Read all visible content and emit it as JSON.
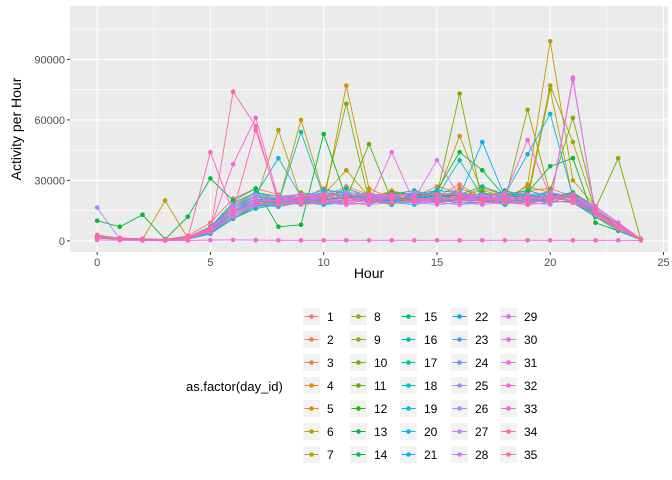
{
  "chart_data": {
    "type": "line",
    "xlabel": "Hour",
    "ylabel": "Activity per Hour",
    "xlim": [
      -1.2,
      25.2
    ],
    "ylim": [
      -5500,
      116500
    ],
    "xticks": [
      "0",
      "5",
      "10",
      "15",
      "20",
      "25"
    ],
    "xtick_values": [
      0,
      5,
      10,
      15,
      20,
      25
    ],
    "yticks": [
      "0",
      "30000",
      "60000",
      "90000"
    ],
    "ytick_values": [
      0,
      30000,
      60000,
      90000
    ],
    "grid": true,
    "legend": {
      "title": "as.factor(day_id)",
      "placement": "bottom",
      "columns": 5,
      "rows": 7
    },
    "x": [
      0,
      1,
      2,
      3,
      4,
      5,
      6,
      7,
      8,
      9,
      10,
      11,
      12,
      13,
      14,
      15,
      16,
      17,
      18,
      19,
      20,
      21,
      22,
      23,
      24
    ],
    "series": [
      {
        "name": "1",
        "color": "#F8766D",
        "values": [
          2500,
          1500,
          1000,
          800,
          2500,
          9000,
          21000,
          26000,
          23000,
          19000,
          22000,
          27000,
          23000,
          19000,
          24000,
          22000,
          28000,
          21000,
          24000,
          20000,
          24000,
          21000,
          14000,
          9000,
          1000
        ]
      },
      {
        "name": "2",
        "color": "#F47D4E",
        "values": [
          3000,
          1200,
          900,
          600,
          1800,
          7000,
          18000,
          24000,
          22000,
          21000,
          26000,
          23000,
          21000,
          25000,
          22000,
          27000,
          24000,
          19000,
          22000,
          25000,
          26000,
          22000,
          16000,
          8000,
          900
        ]
      },
      {
        "name": "3",
        "color": "#EC8239",
        "values": [
          1800,
          800,
          600,
          500,
          1500,
          5000,
          14000,
          20000,
          18000,
          22000,
          20000,
          19000,
          18000,
          22000,
          21000,
          24000,
          22000,
          26000,
          23000,
          21000,
          19000,
          23000,
          14000,
          6000,
          700
        ]
      },
      {
        "name": "4",
        "color": "#E08B00",
        "values": [
          2000,
          1000,
          700,
          400,
          1200,
          6000,
          15000,
          18000,
          20000,
          18000,
          21000,
          24000,
          20000,
          18000,
          23000,
          20000,
          26000,
          22000,
          20000,
          18000,
          22000,
          20000,
          15000,
          7000,
          800
        ]
      },
      {
        "name": "5",
        "color": "#D39200",
        "values": [
          1500,
          700,
          500,
          300,
          1000,
          4000,
          13000,
          19000,
          17000,
          20000,
          19000,
          77000,
          26000,
          21000,
          20000,
          22000,
          23000,
          20000,
          21000,
          27000,
          24000,
          19000,
          12000,
          6000,
          600
        ]
      },
      {
        "name": "6",
        "color": "#C49A00",
        "values": [
          2200,
          1100,
          800,
          20000,
          1400,
          5500,
          16000,
          21000,
          19000,
          60000,
          23000,
          35000,
          22000,
          24000,
          21000,
          23000,
          52000,
          24000,
          19000,
          28000,
          99000,
          30000,
          17000,
          9000,
          900
        ]
      },
      {
        "name": "7",
        "color": "#B4A000",
        "values": [
          1700,
          900,
          700,
          500,
          1300,
          5000,
          14000,
          20000,
          55000,
          21000,
          20000,
          22000,
          19000,
          23000,
          20000,
          21000,
          22000,
          25000,
          22000,
          20000,
          75000,
          21000,
          13000,
          7000,
          700
        ]
      },
      {
        "name": "8",
        "color": "#A3A500",
        "values": [
          2400,
          1300,
          900,
          600,
          1600,
          6000,
          17000,
          23000,
          21000,
          19000,
          24000,
          22000,
          24000,
          20000,
          22000,
          24000,
          21000,
          23000,
          24000,
          22000,
          77000,
          49000,
          15000,
          8000,
          800
        ]
      },
      {
        "name": "9",
        "color": "#8FAA00",
        "values": [
          1900,
          1000,
          600,
          400,
          1100,
          4500,
          12000,
          18000,
          20000,
          22000,
          21000,
          20000,
          22000,
          19000,
          24000,
          20000,
          20000,
          22000,
          20000,
          65000,
          23000,
          22000,
          14000,
          6000,
          600
        ]
      },
      {
        "name": "10",
        "color": "#78AF00",
        "values": [
          2100,
          1100,
          800,
          500,
          1500,
          5500,
          15000,
          21000,
          18000,
          24000,
          22000,
          68000,
          20000,
          22000,
          19000,
          23000,
          73000,
          19000,
          23000,
          21000,
          25000,
          61000,
          16000,
          41000,
          700
        ]
      },
      {
        "name": "11",
        "color": "#5BB300",
        "values": [
          1600,
          800,
          600,
          300,
          1000,
          4000,
          11000,
          17000,
          19000,
          20000,
          18000,
          21000,
          48000,
          20000,
          22000,
          21000,
          23000,
          21000,
          19000,
          23000,
          21000,
          20000,
          13000,
          7000,
          500
        ]
      },
      {
        "name": "12",
        "color": "#22B700",
        "values": [
          2300,
          1200,
          900,
          600,
          1700,
          6500,
          17000,
          22000,
          20000,
          21000,
          24000,
          23000,
          21000,
          24000,
          23000,
          22000,
          24000,
          20000,
          25000,
          22000,
          20000,
          24000,
          15000,
          8000,
          800
        ]
      },
      {
        "name": "13",
        "color": "#00BA38",
        "values": [
          10000,
          7000,
          13000,
          800,
          12000,
          31000,
          20000,
          26000,
          7000,
          8000,
          53000,
          21000,
          23000,
          19000,
          21000,
          25000,
          44000,
          35000,
          22000,
          24000,
          37000,
          41000,
          9000,
          5000,
          600
        ]
      },
      {
        "name": "14",
        "color": "#00BD5C",
        "values": [
          1800,
          900,
          700,
          400,
          1200,
          5000,
          13000,
          19000,
          21000,
          18000,
          20000,
          23000,
          19000,
          21000,
          20000,
          24000,
          20000,
          24000,
          21000,
          19000,
          23000,
          22000,
          14000,
          6000,
          700
        ]
      },
      {
        "name": "15",
        "color": "#00BF7D",
        "values": [
          2600,
          1400,
          1000,
          700,
          1900,
          7000,
          19000,
          24000,
          22000,
          23000,
          21000,
          26000,
          22000,
          23000,
          25000,
          22000,
          23000,
          27000,
          23000,
          25000,
          22000,
          24000,
          17000,
          9000,
          900
        ]
      },
      {
        "name": "16",
        "color": "#00C199",
        "values": [
          1500,
          800,
          500,
          300,
          900,
          3500,
          11000,
          16000,
          18000,
          21000,
          19000,
          20000,
          21000,
          18000,
          22000,
          19000,
          21000,
          20000,
          18000,
          21000,
          20000,
          19000,
          12000,
          5000,
          500
        ]
      },
      {
        "name": "17",
        "color": "#00C1B2",
        "values": [
          2000,
          1100,
          800,
          500,
          1400,
          5500,
          15000,
          20000,
          19000,
          54000,
          22000,
          21000,
          23000,
          20000,
          21000,
          22000,
          40000,
          22000,
          21000,
          23000,
          21000,
          23000,
          15000,
          7000,
          700
        ]
      },
      {
        "name": "18",
        "color": "#00C0C7",
        "values": [
          2200,
          1200,
          800,
          600,
          1600,
          6000,
          16000,
          22000,
          20000,
          22000,
          23000,
          22000,
          20000,
          22000,
          24000,
          21000,
          22000,
          21000,
          24000,
          22000,
          24000,
          21000,
          16000,
          8000,
          800
        ]
      },
      {
        "name": "19",
        "color": "#00BDDA",
        "values": [
          1700,
          900,
          600,
          400,
          1100,
          4500,
          12000,
          18000,
          17000,
          19000,
          18000,
          19000,
          20000,
          19000,
          18000,
          20000,
          19000,
          19000,
          20000,
          20000,
          19000,
          20000,
          13000,
          6000,
          600
        ]
      },
      {
        "name": "20",
        "color": "#00B8E7",
        "values": [
          2500,
          1300,
          900,
          600,
          1800,
          6500,
          18000,
          23000,
          41000,
          22000,
          25000,
          24000,
          23000,
          22000,
          23000,
          25000,
          24000,
          22000,
          23000,
          43000,
          63000,
          22000,
          17000,
          9000,
          900
        ]
      },
      {
        "name": "21",
        "color": "#00B2F3",
        "values": [
          1900,
          1000,
          700,
          500,
          1300,
          5000,
          14000,
          20000,
          21000,
          20000,
          21000,
          21000,
          22000,
          21000,
          22000,
          20000,
          22000,
          49000,
          22000,
          21000,
          22000,
          21000,
          14000,
          7000,
          700
        ]
      },
      {
        "name": "22",
        "color": "#00ABFD",
        "values": [
          2100,
          1100,
          800,
          500,
          1500,
          5500,
          15000,
          21000,
          19000,
          21000,
          20000,
          22000,
          21000,
          20000,
          21000,
          22000,
          21000,
          22000,
          21000,
          22000,
          21000,
          22000,
          15000,
          7000,
          700
        ]
      },
      {
        "name": "23",
        "color": "#35A2FF",
        "values": [
          1600,
          900,
          600,
          300,
          1000,
          4000,
          12000,
          17000,
          18000,
          20000,
          19000,
          18000,
          19000,
          20000,
          19000,
          21000,
          20000,
          20000,
          19000,
          20000,
          20000,
          19000,
          13000,
          6000,
          600
        ]
      },
      {
        "name": "24",
        "color": "#7098FF",
        "values": [
          2300,
          1200,
          900,
          600,
          1700,
          6000,
          17000,
          22000,
          21000,
          22000,
          24000,
          23000,
          22000,
          23000,
          22000,
          23000,
          23000,
          23000,
          22000,
          23000,
          22000,
          23000,
          16000,
          8000,
          800
        ]
      },
      {
        "name": "25",
        "color": "#9590FF",
        "values": [
          16500,
          900,
          700,
          400,
          1200,
          5000,
          13000,
          19000,
          20000,
          19000,
          20000,
          20000,
          21000,
          19000,
          20000,
          21000,
          20000,
          21000,
          20000,
          21000,
          21000,
          20000,
          14000,
          6000,
          700
        ]
      },
      {
        "name": "26",
        "color": "#AC88FF",
        "values": [
          2400,
          1300,
          900,
          600,
          1800,
          6500,
          18000,
          23000,
          22000,
          23000,
          22000,
          24000,
          23000,
          22000,
          24000,
          23000,
          24000,
          22000,
          24000,
          23000,
          24000,
          22000,
          17000,
          9000,
          800
        ]
      },
      {
        "name": "27",
        "color": "#C17FFF",
        "values": [
          1800,
          900,
          600,
          400,
          1100,
          4500,
          12000,
          18000,
          19000,
          18000,
          19000,
          19000,
          18000,
          19000,
          19000,
          18000,
          19000,
          18000,
          19000,
          19000,
          18000,
          80000,
          13000,
          6000,
          600
        ]
      },
      {
        "name": "28",
        "color": "#D376FF",
        "values": [
          2000,
          1000,
          700,
          500,
          1400,
          5500,
          15000,
          20000,
          20000,
          21000,
          21000,
          20000,
          21000,
          21000,
          20000,
          22000,
          21000,
          21000,
          22000,
          21000,
          22000,
          21000,
          15000,
          7000,
          700
        ]
      },
      {
        "name": "29",
        "color": "#E36EF6",
        "values": [
          2200,
          1100,
          800,
          500,
          1500,
          6000,
          16000,
          21000,
          20000,
          22000,
          22000,
          21000,
          22000,
          22000,
          21000,
          40000,
          22000,
          22000,
          21000,
          22000,
          21000,
          22000,
          16000,
          8000,
          800
        ]
      },
      {
        "name": "30",
        "color": "#EF67EB",
        "values": [
          1700,
          900,
          600,
          400,
          1100,
          4500,
          13000,
          18000,
          18000,
          19000,
          19000,
          18000,
          19000,
          44000,
          19000,
          19000,
          18000,
          19000,
          19000,
          18000,
          19000,
          81000,
          13000,
          6000,
          600
        ]
      },
      {
        "name": "31",
        "color": "#F863DF",
        "values": [
          500,
          300,
          200,
          100,
          200,
          400,
          500,
          400,
          300,
          300,
          300,
          300,
          300,
          300,
          300,
          300,
          300,
          300,
          300,
          300,
          300,
          300,
          300,
          300,
          200
        ]
      },
      {
        "name": "32",
        "color": "#FD61D1",
        "values": [
          2500,
          1300,
          900,
          600,
          1800,
          6500,
          38000,
          61000,
          21000,
          23000,
          23000,
          22000,
          23000,
          23000,
          22000,
          23000,
          23000,
          22000,
          23000,
          50000,
          22000,
          23000,
          17000,
          9000,
          900
        ]
      },
      {
        "name": "33",
        "color": "#FF61C3",
        "values": [
          1900,
          1000,
          700,
          500,
          1300,
          44000,
          14000,
          19000,
          20000,
          20000,
          21000,
          20000,
          20000,
          21000,
          20000,
          20000,
          21000,
          20000,
          21000,
          20000,
          21000,
          20000,
          14000,
          7000,
          700
        ]
      },
      {
        "name": "34",
        "color": "#FF64B3",
        "values": [
          2100,
          1100,
          800,
          500,
          1500,
          5500,
          15000,
          55000,
          20000,
          21000,
          22000,
          21000,
          21000,
          22000,
          21000,
          21000,
          22000,
          21000,
          21000,
          22000,
          21000,
          22000,
          15000,
          7000,
          700
        ]
      },
      {
        "name": "35",
        "color": "#FF68A1",
        "values": [
          1800,
          900,
          600,
          400,
          1200,
          5000,
          74000,
          57000,
          19000,
          19000,
          20000,
          19000,
          20000,
          19000,
          20000,
          19000,
          20000,
          19000,
          20000,
          19000,
          20000,
          19000,
          14000,
          6000,
          600
        ]
      }
    ]
  }
}
